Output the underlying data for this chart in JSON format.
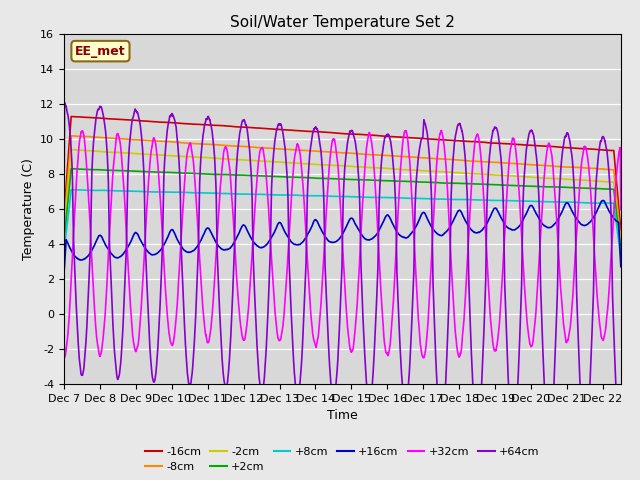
{
  "title": "Soil/Water Temperature Set 2",
  "xlabel": "Time",
  "ylabel": "Temperature (C)",
  "ylim": [
    -4,
    16
  ],
  "xlim": [
    0,
    15.5
  ],
  "yticks": [
    -4,
    -2,
    0,
    2,
    4,
    6,
    8,
    10,
    12,
    14,
    16
  ],
  "xtick_labels": [
    "Dec 7",
    "Dec 8",
    "Dec 9",
    "Dec 10",
    "Dec 11",
    "Dec 12",
    "Dec 13",
    "Dec 14",
    "Dec 15",
    "Dec 16",
    "Dec 17",
    "Dec 18",
    "Dec 19",
    "Dec 20",
    "Dec 21",
    "Dec 22"
  ],
  "annotation_text": "EE_met",
  "annotation_color": "#8B0000",
  "background_color": "#e8e8e8",
  "plot_bg_color": "#d8d8d8",
  "series": [
    {
      "label": "-16cm",
      "color": "#cc0000"
    },
    {
      "label": "-8cm",
      "color": "#ff8800"
    },
    {
      "label": "-2cm",
      "color": "#cccc00"
    },
    {
      "label": "+2cm",
      "color": "#00aa00"
    },
    {
      "label": "+8cm",
      "color": "#00cccc"
    },
    {
      "label": "+16cm",
      "color": "#0000cc"
    },
    {
      "label": "+32cm",
      "color": "#ff00ff"
    },
    {
      "label": "+64cm",
      "color": "#8800cc"
    }
  ]
}
